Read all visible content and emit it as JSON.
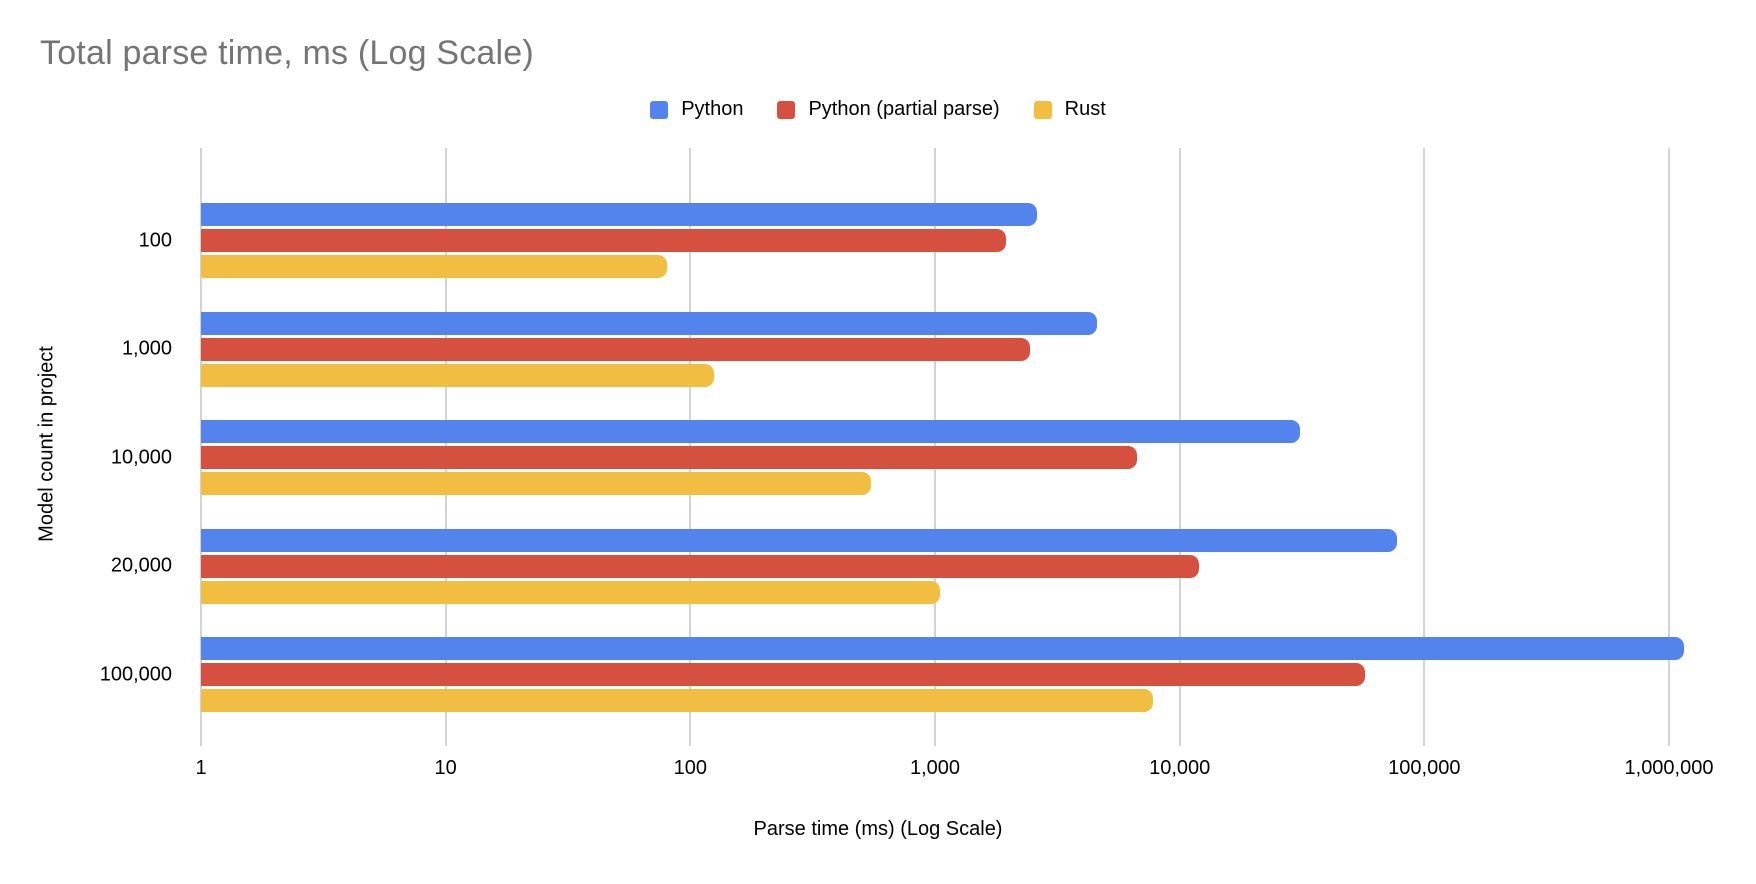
{
  "chart_data": {
    "type": "bar",
    "orientation": "horizontal",
    "title": "Total parse time, ms (Log Scale)",
    "xlabel": "Parse time (ms) (Log Scale)",
    "ylabel": "Model count in project",
    "categories": [
      "100",
      "1,000",
      "10,000",
      "20,000",
      "100,000"
    ],
    "series": [
      {
        "name": "Python",
        "color": "#5383ec",
        "values": [
          2600,
          4600,
          31000,
          77000,
          1150000
        ]
      },
      {
        "name": "Python (partial parse)",
        "color": "#d6503f",
        "values": [
          1950,
          2450,
          6700,
          12000,
          57000
        ]
      },
      {
        "name": "Rust",
        "color": "#f1be42",
        "values": [
          80,
          125,
          550,
          1050,
          7800
        ]
      }
    ],
    "x_scale": "log",
    "xlim": [
      1,
      1000000
    ],
    "x_ticks": [
      {
        "value": 1,
        "label": "1"
      },
      {
        "value": 10,
        "label": "10"
      },
      {
        "value": 100,
        "label": "100"
      },
      {
        "value": 1000,
        "label": "1,000"
      },
      {
        "value": 10000,
        "label": "10,000"
      },
      {
        "value": 100000,
        "label": "100,000"
      },
      {
        "value": 1000000,
        "label": "1,000,000"
      }
    ],
    "grid": true,
    "legend_position": "top",
    "colors": {
      "title_gray": "#757575",
      "gridline": "#d3d3d3",
      "text": "#000000"
    }
  }
}
